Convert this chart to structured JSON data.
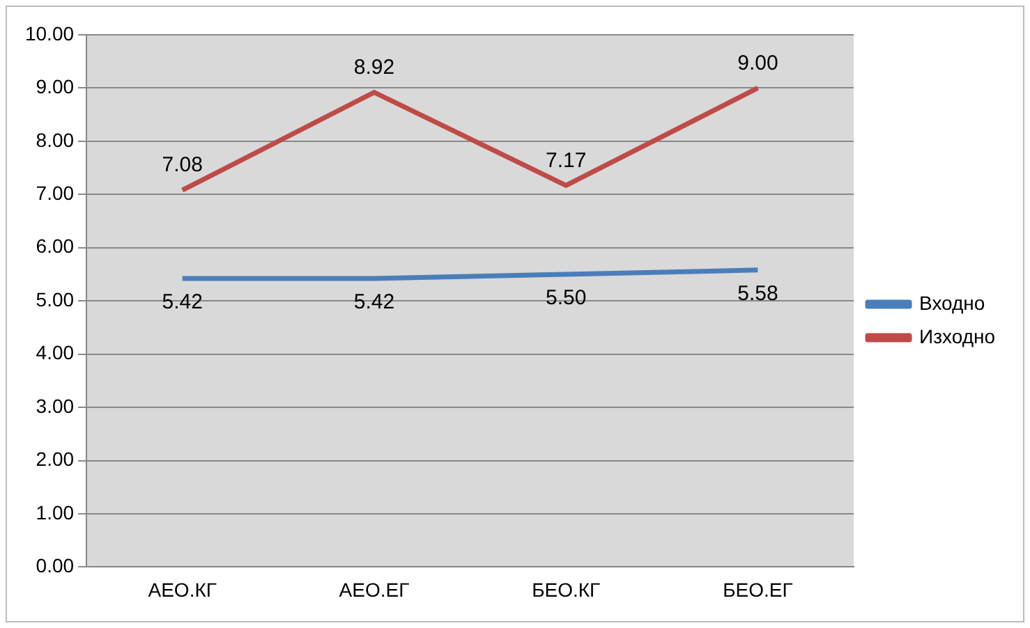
{
  "chart_data": {
    "type": "line",
    "categories": [
      "АЕО.КГ",
      "АЕО.ЕГ",
      "БЕО.КГ",
      "БЕО.ЕГ"
    ],
    "series": [
      {
        "name": "Входно",
        "color": "#4a7ebb",
        "values": [
          5.42,
          5.42,
          5.5,
          5.58
        ],
        "value_labels": [
          "5.42",
          "5.42",
          "5.50",
          "5.58"
        ]
      },
      {
        "name": "Изходно",
        "color": "#be4b48",
        "values": [
          7.08,
          8.92,
          7.17,
          9.0
        ],
        "value_labels": [
          "7.08",
          "8.92",
          "7.17",
          "9.00"
        ]
      }
    ],
    "ylim": [
      0,
      10
    ],
    "yticks": [
      {
        "value": 0,
        "label": "0.00"
      },
      {
        "value": 1,
        "label": "1.00"
      },
      {
        "value": 2,
        "label": "2.00"
      },
      {
        "value": 3,
        "label": "3.00"
      },
      {
        "value": 4,
        "label": "4.00"
      },
      {
        "value": 5,
        "label": "5.00"
      },
      {
        "value": 6,
        "label": "6.00"
      },
      {
        "value": 7,
        "label": "7.00"
      },
      {
        "value": 8,
        "label": "8.00"
      },
      {
        "value": 9,
        "label": "9.00"
      },
      {
        "value": 10,
        "label": "10.00"
      }
    ],
    "grid": "y",
    "legend": "right",
    "marker": "none",
    "line_style": "solid"
  }
}
